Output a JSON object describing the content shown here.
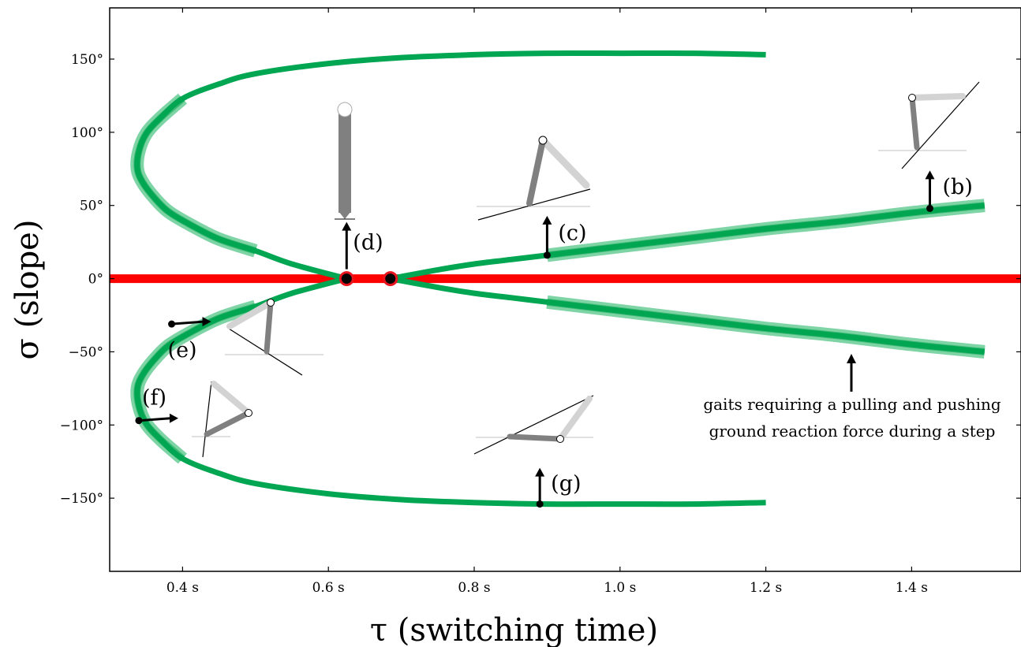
{
  "chart_data": {
    "type": "line",
    "xlabel": "τ (switching time)",
    "ylabel": "σ (slope)",
    "xlim": [
      0.3,
      1.55
    ],
    "ylim": [
      -200,
      185
    ],
    "xticks": [
      0.4,
      0.6,
      0.8,
      1.0,
      1.2,
      1.4
    ],
    "xtick_labels": [
      "0.4 s",
      "0.6 s",
      "0.8 s",
      "1.0 s",
      "1.2 s",
      "1.4 s"
    ],
    "yticks": [
      150,
      100,
      50,
      0,
      -50,
      -100,
      -150
    ],
    "ytick_labels": [
      "150°",
      "100°",
      "50°",
      "0°",
      "−50°",
      "−100°",
      "−150°"
    ],
    "grid": false,
    "colors": {
      "period_one": "#00a651",
      "flat_ground": "#ff0000",
      "highlight": "#7fd4a6",
      "marker_edge": "#e8141e",
      "leg_dark": "#808080",
      "leg_light": "#d3d3d3"
    },
    "series": [
      {
        "x": [
          0.625,
          0.55,
          0.5,
          0.45,
          0.41,
          0.38,
          0.36,
          0.345,
          0.338,
          0.34,
          0.35,
          0.37,
          0.4,
          0.45,
          0.5,
          0.6,
          0.7,
          0.8,
          0.9,
          1.0,
          1.1,
          1.2
        ],
        "y": [
          0,
          10,
          19,
          27,
          37,
          46,
          56,
          66,
          75,
          87,
          99,
          110,
          123,
          133,
          140,
          147,
          151,
          153,
          154,
          154,
          154,
          153
        ]
      },
      {
        "x": [
          0.625,
          0.55,
          0.5,
          0.45,
          0.41,
          0.38,
          0.36,
          0.345,
          0.338,
          0.34,
          0.35,
          0.37,
          0.4,
          0.45,
          0.5,
          0.6,
          0.7,
          0.8,
          0.9,
          1.0,
          1.1,
          1.2
        ],
        "y": [
          0,
          -10,
          -19,
          -27,
          -37,
          -46,
          -56,
          -66,
          -75,
          -87,
          -99,
          -110,
          -123,
          -133,
          -140,
          -147,
          -151,
          -153,
          -154,
          -154,
          -154,
          -153
        ]
      },
      {
        "x": [
          0.685,
          0.75,
          0.8,
          0.85,
          0.9,
          0.95,
          1.0,
          1.1,
          1.2,
          1.3,
          1.4,
          1.5
        ],
        "y": [
          0,
          6,
          10,
          13,
          16,
          19,
          22,
          28,
          34,
          39,
          45,
          50
        ]
      },
      {
        "x": [
          0.685,
          0.75,
          0.8,
          0.85,
          0.9,
          0.95,
          1.0,
          1.1,
          1.2,
          1.3,
          1.4,
          1.5
        ],
        "y": [
          0,
          -6,
          -10,
          -13,
          -16,
          -19,
          -22,
          -28,
          -34,
          -39,
          -45,
          -50
        ]
      },
      {
        "x": [
          0.3,
          1.55
        ],
        "y": [
          0,
          0
        ]
      }
    ],
    "points": [
      {
        "x": 0.625,
        "y": 0
      },
      {
        "x": 0.685,
        "y": 0
      }
    ],
    "annotations": [
      {
        "label": "(b)",
        "x": 1.425,
        "y": 48
      },
      {
        "label": "(c)",
        "x": 0.9,
        "y": 16
      },
      {
        "label": "(d)",
        "x": 0.625,
        "y": 0
      },
      {
        "label": "(e)",
        "x": 0.385,
        "y": -31
      },
      {
        "label": "(f)",
        "x": 0.34,
        "y": -97
      },
      {
        "label": "(g)",
        "x": 0.89,
        "y": -154
      }
    ],
    "note": [
      "gaits requiring a pulling and pushing",
      "ground reaction force during a step"
    ]
  }
}
